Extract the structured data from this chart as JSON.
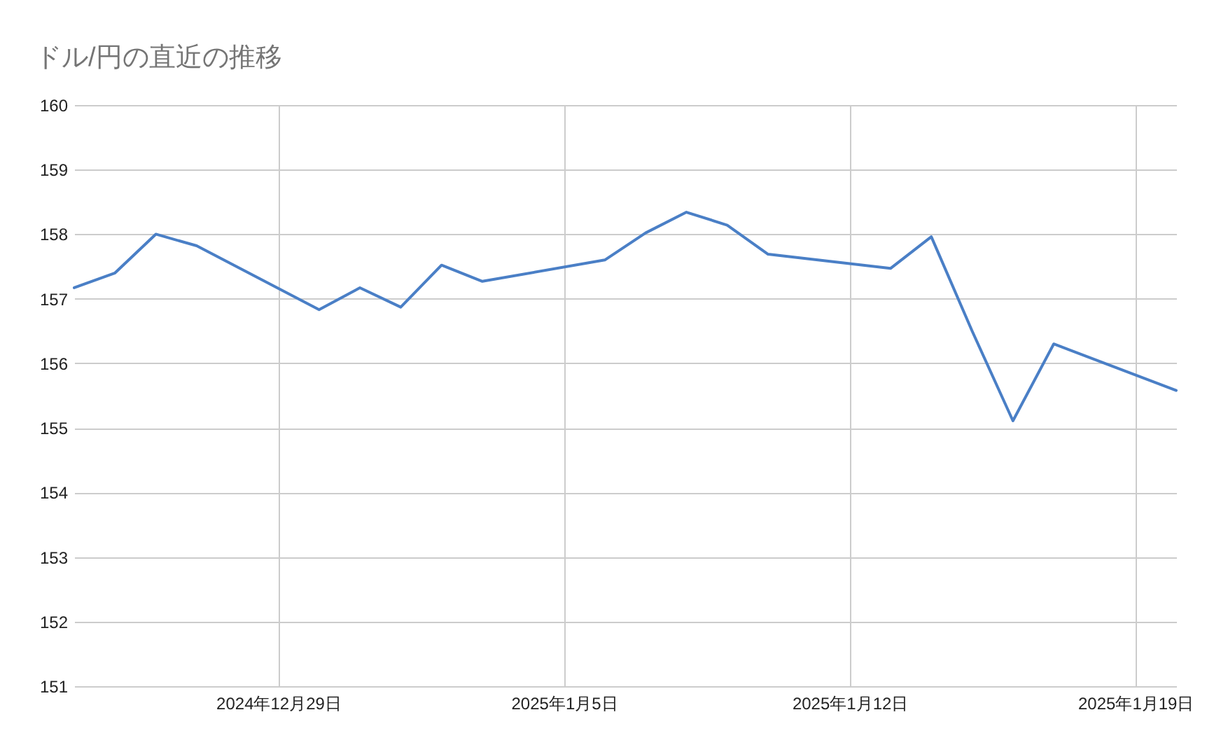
{
  "chart_data": {
    "type": "line",
    "title": "ドル/円の直近の推移",
    "x": [
      "2024-12-24",
      "2024-12-25",
      "2024-12-26",
      "2024-12-27",
      "2024-12-30",
      "2024-12-31",
      "2025-01-01",
      "2025-01-02",
      "2025-01-03",
      "2025-01-06",
      "2025-01-07",
      "2025-01-08",
      "2025-01-09",
      "2025-01-10",
      "2025-01-13",
      "2025-01-14",
      "2025-01-15",
      "2025-01-16",
      "2025-01-17",
      "2025-01-20"
    ],
    "series": [
      {
        "color": "#4a7fc6",
        "values": [
          157.17,
          157.4,
          158.0,
          157.82,
          156.83,
          157.17,
          156.87,
          157.52,
          157.27,
          157.6,
          158.02,
          158.34,
          158.14,
          157.69,
          157.47,
          157.96,
          156.5,
          155.11,
          156.3,
          155.58
        ]
      }
    ],
    "xlim": [
      "2024-12-24",
      "2025-01-20"
    ],
    "xticks": [
      {
        "value": "2024-12-29",
        "label": "2024年12月29日"
      },
      {
        "value": "2025-01-05",
        "label": "2025年1月5日"
      },
      {
        "value": "2025-01-12",
        "label": "2025年1月12日"
      },
      {
        "value": "2025-01-19",
        "label": "2025年1月19日"
      }
    ],
    "ylim": [
      151,
      160
    ],
    "yticks": [
      151,
      152,
      153,
      154,
      155,
      156,
      157,
      158,
      159,
      160
    ],
    "grid": true,
    "line_style": "solid"
  }
}
